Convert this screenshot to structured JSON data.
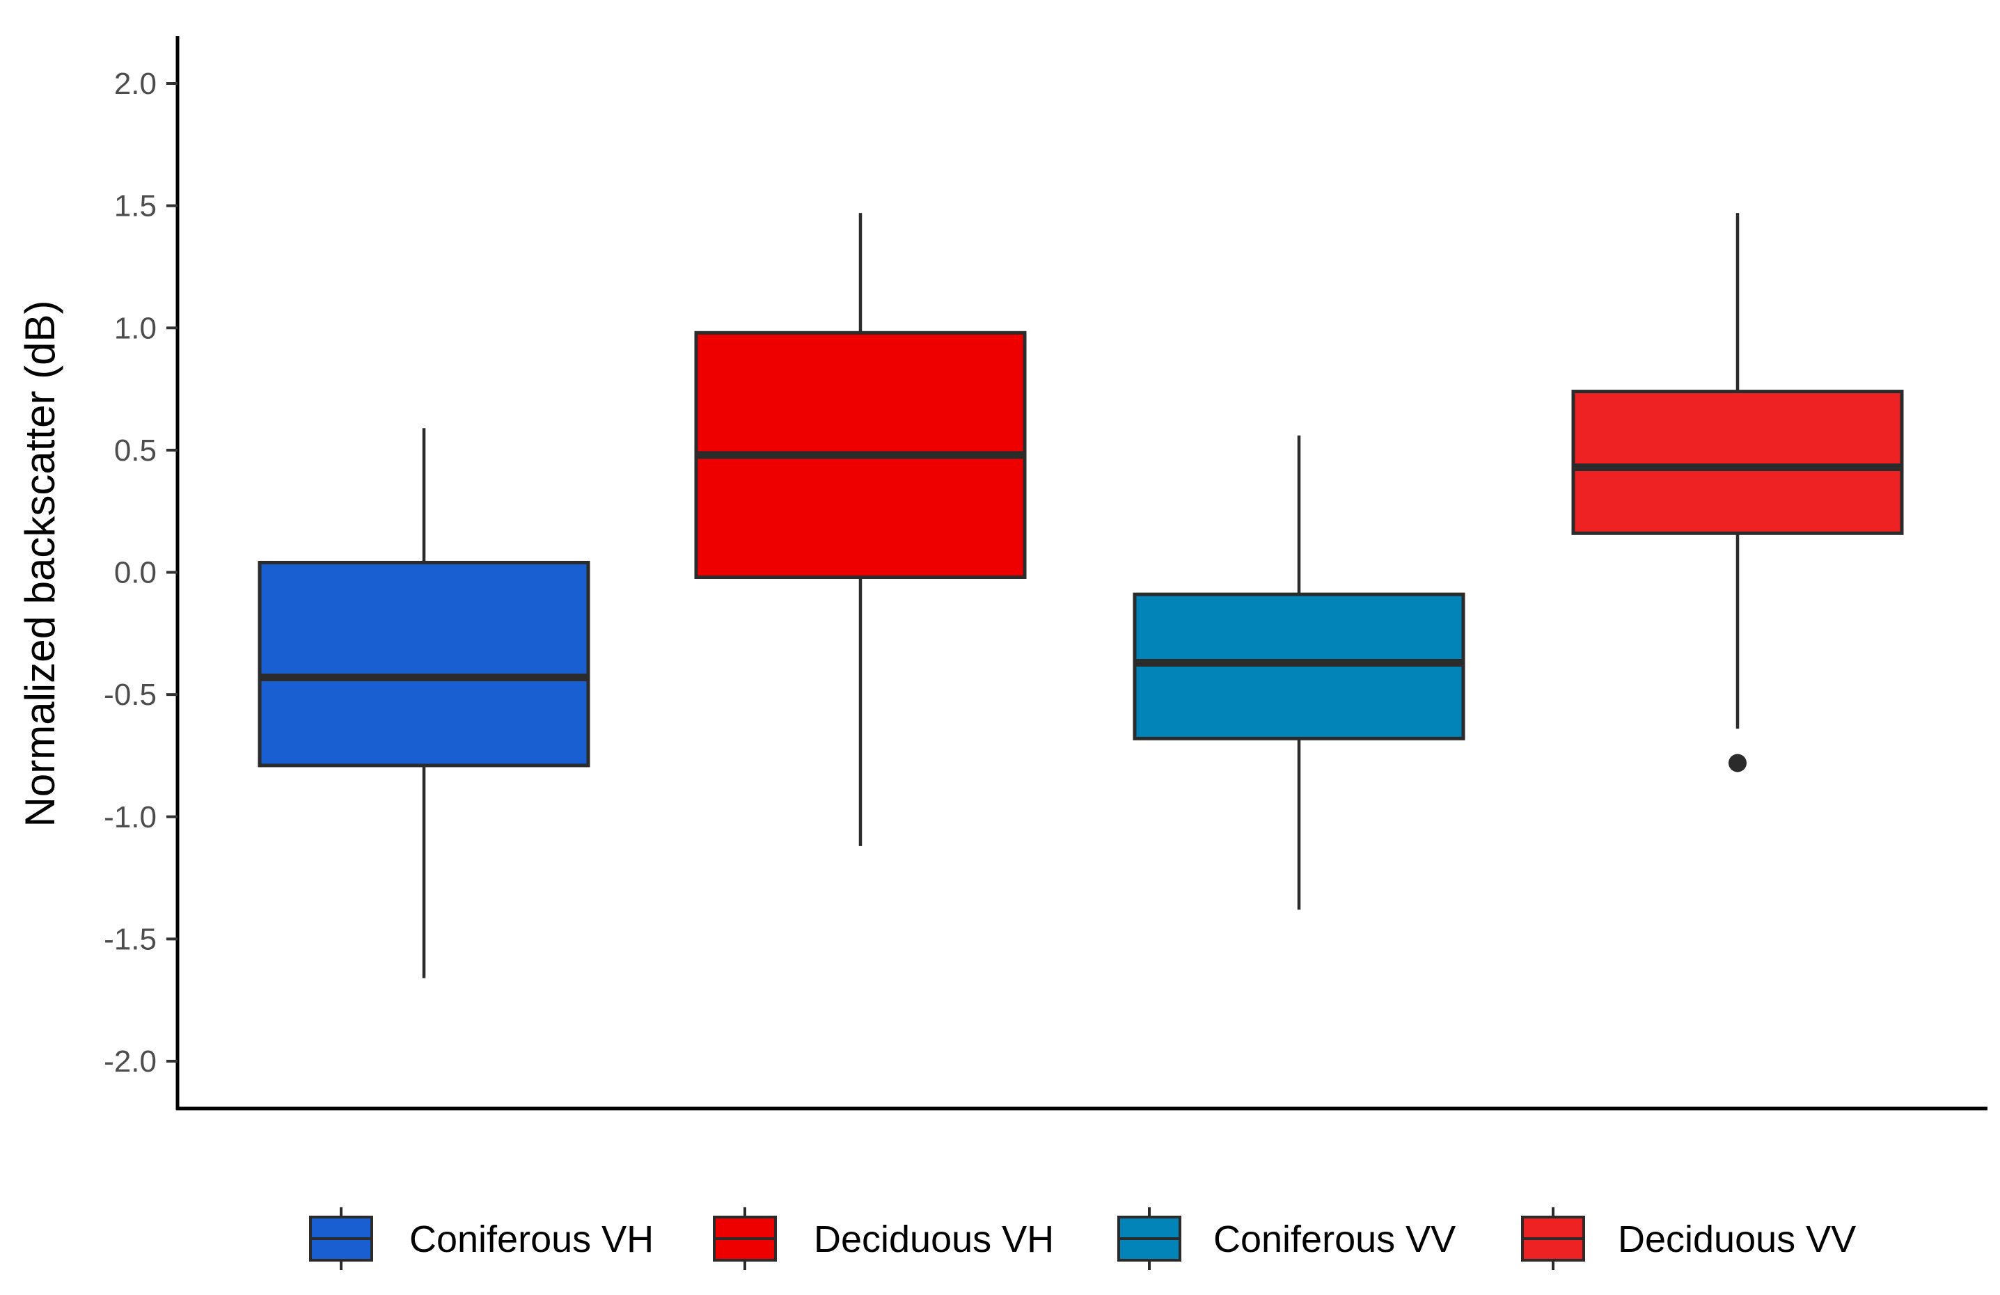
{
  "chart_data": {
    "type": "box",
    "title": "",
    "xlabel": "",
    "ylabel": "Normalized backscatter (dB)",
    "ylim": [
      -2.2,
      2.2
    ],
    "yticks": [
      2.0,
      1.5,
      1.0,
      0.5,
      0.0,
      -0.5,
      -1.0,
      -1.5,
      -2.0
    ],
    "ytick_labels": [
      "2.0",
      "1.5",
      "1.0",
      "0.5",
      "0.0",
      "-0.5",
      "-1.0",
      "-1.5",
      "-2.0"
    ],
    "grid": false,
    "legend_position": "bottom",
    "series": [
      {
        "name": "Coniferous VH",
        "color": "#1a5fd2",
        "whisker_low": -1.66,
        "q1": -0.79,
        "median": -0.43,
        "q3": 0.04,
        "whisker_high": 0.59,
        "outliers": []
      },
      {
        "name": "Deciduous VH",
        "color": "#ee0000",
        "whisker_low": -1.12,
        "q1": -0.02,
        "median": 0.48,
        "q3": 0.98,
        "whisker_high": 1.47,
        "outliers": []
      },
      {
        "name": "Coniferous VV",
        "color": "#0284b8",
        "whisker_low": -1.38,
        "q1": -0.68,
        "median": -0.37,
        "q3": -0.09,
        "whisker_high": 0.56,
        "outliers": []
      },
      {
        "name": "Deciduous VV",
        "color": "#ee2222",
        "whisker_low": -0.64,
        "q1": 0.16,
        "median": 0.43,
        "q3": 0.74,
        "whisker_high": 1.47,
        "outliers": [
          -0.78
        ]
      }
    ]
  }
}
